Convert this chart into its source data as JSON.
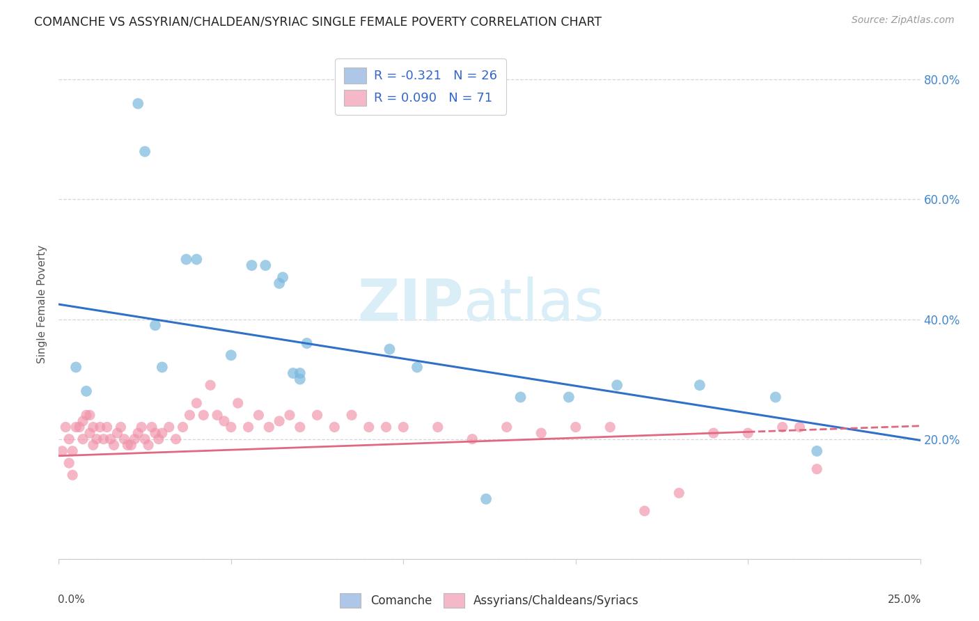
{
  "title": "COMANCHE VS ASSYRIAN/CHALDEAN/SYRIAC SINGLE FEMALE POVERTY CORRELATION CHART",
  "source": "Source: ZipAtlas.com",
  "ylabel": "Single Female Poverty",
  "right_yticks": [
    "20.0%",
    "40.0%",
    "60.0%",
    "80.0%"
  ],
  "right_ytick_vals": [
    0.2,
    0.4,
    0.6,
    0.8
  ],
  "legend_label1": "R = -0.321   N = 26",
  "legend_label2": "R = 0.090   N = 71",
  "legend_color1": "#aec6e8",
  "legend_color2": "#f4b8c8",
  "dot_color1": "#7ab8de",
  "dot_color2": "#f090a8",
  "line_color1": "#3070c8",
  "line_color2": "#e06880",
  "watermark_color": "#daeef8",
  "xlim": [
    0.0,
    0.25
  ],
  "ylim": [
    0.0,
    0.85
  ],
  "comanche_x": [
    0.023,
    0.025,
    0.005,
    0.008,
    0.028,
    0.03,
    0.037,
    0.04,
    0.05,
    0.056,
    0.06,
    0.064,
    0.065,
    0.068,
    0.07,
    0.07,
    0.072,
    0.096,
    0.104,
    0.124,
    0.134,
    0.148,
    0.162,
    0.186,
    0.208,
    0.22
  ],
  "comanche_y": [
    0.76,
    0.68,
    0.32,
    0.28,
    0.39,
    0.32,
    0.5,
    0.5,
    0.34,
    0.49,
    0.49,
    0.46,
    0.47,
    0.31,
    0.3,
    0.31,
    0.36,
    0.35,
    0.32,
    0.1,
    0.27,
    0.27,
    0.29,
    0.29,
    0.27,
    0.18
  ],
  "assyrian_x": [
    0.001,
    0.002,
    0.003,
    0.003,
    0.004,
    0.004,
    0.005,
    0.006,
    0.007,
    0.007,
    0.008,
    0.009,
    0.009,
    0.01,
    0.01,
    0.011,
    0.012,
    0.013,
    0.014,
    0.015,
    0.016,
    0.017,
    0.018,
    0.019,
    0.02,
    0.021,
    0.022,
    0.023,
    0.024,
    0.025,
    0.026,
    0.027,
    0.028,
    0.029,
    0.03,
    0.032,
    0.034,
    0.036,
    0.038,
    0.04,
    0.042,
    0.044,
    0.046,
    0.048,
    0.05,
    0.052,
    0.055,
    0.058,
    0.061,
    0.064,
    0.067,
    0.07,
    0.075,
    0.08,
    0.085,
    0.09,
    0.095,
    0.1,
    0.11,
    0.12,
    0.13,
    0.14,
    0.15,
    0.16,
    0.17,
    0.18,
    0.19,
    0.2,
    0.21,
    0.215,
    0.22
  ],
  "assyrian_y": [
    0.18,
    0.22,
    0.2,
    0.16,
    0.18,
    0.14,
    0.22,
    0.22,
    0.23,
    0.2,
    0.24,
    0.24,
    0.21,
    0.22,
    0.19,
    0.2,
    0.22,
    0.2,
    0.22,
    0.2,
    0.19,
    0.21,
    0.22,
    0.2,
    0.19,
    0.19,
    0.2,
    0.21,
    0.22,
    0.2,
    0.19,
    0.22,
    0.21,
    0.2,
    0.21,
    0.22,
    0.2,
    0.22,
    0.24,
    0.26,
    0.24,
    0.29,
    0.24,
    0.23,
    0.22,
    0.26,
    0.22,
    0.24,
    0.22,
    0.23,
    0.24,
    0.22,
    0.24,
    0.22,
    0.24,
    0.22,
    0.22,
    0.22,
    0.22,
    0.2,
    0.22,
    0.21,
    0.22,
    0.22,
    0.08,
    0.11,
    0.21,
    0.21,
    0.22,
    0.22,
    0.15
  ]
}
